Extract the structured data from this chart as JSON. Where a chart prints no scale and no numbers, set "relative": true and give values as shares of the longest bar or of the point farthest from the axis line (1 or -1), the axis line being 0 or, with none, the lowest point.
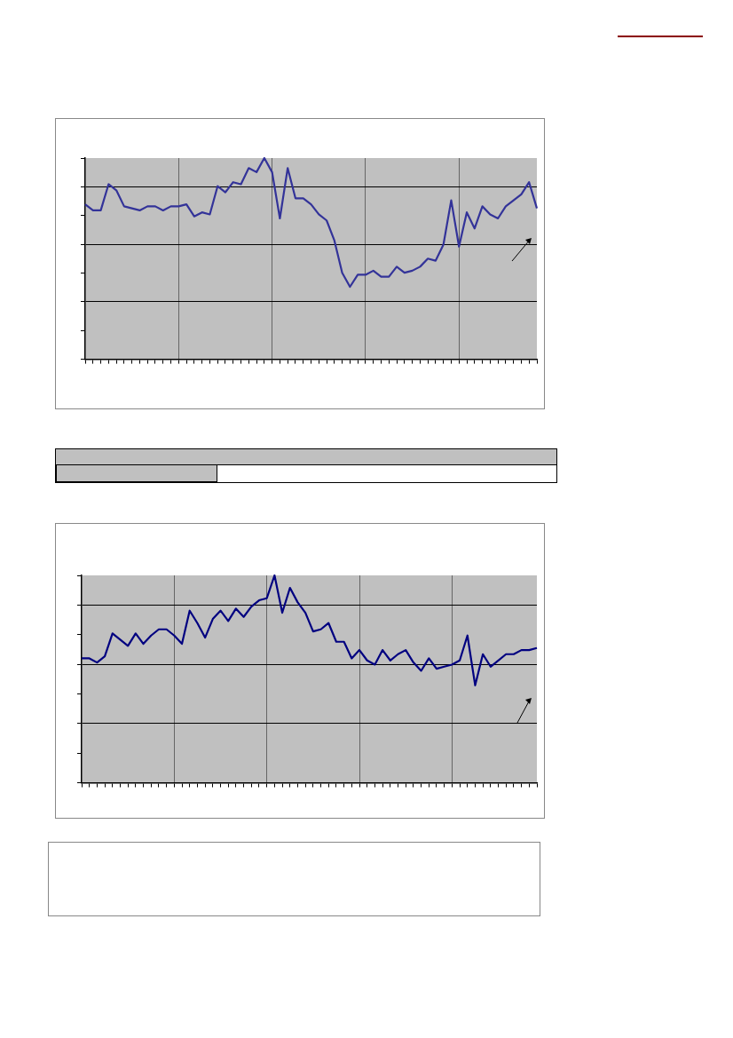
{
  "chart_data": [
    {
      "type": "line",
      "relative": true,
      "grid": true,
      "legend": false,
      "marker": "none",
      "line_style": "solid",
      "categories": [
        null,
        null,
        null,
        null,
        null,
        null,
        null,
        null,
        null,
        null,
        null,
        null,
        null,
        null,
        null,
        null,
        null,
        null,
        null,
        null,
        null,
        null,
        null,
        null,
        null,
        null,
        null,
        null,
        null,
        null,
        null,
        null,
        null,
        null,
        null,
        null,
        null,
        null,
        null,
        null,
        null,
        null,
        null,
        null,
        null,
        null,
        null,
        null,
        null,
        null,
        null,
        null,
        null,
        null,
        null,
        null,
        null,
        null,
        null
      ],
      "series": [
        {
          "color": "#333399",
          "values": [
            0.77,
            0.74,
            0.74,
            0.87,
            0.84,
            0.76,
            0.75,
            0.74,
            0.76,
            0.76,
            0.74,
            0.76,
            0.76,
            0.77,
            0.71,
            0.73,
            0.72,
            0.86,
            0.83,
            0.88,
            0.87,
            0.95,
            0.93,
            1,
            0.93,
            0.7,
            0.95,
            0.8,
            0.8,
            0.77,
            0.72,
            0.69,
            0.59,
            0.43,
            0.36,
            0.42,
            0.42,
            0.44,
            0.41,
            0.41,
            0.46,
            0.43,
            0.44,
            0.46,
            0.5,
            0.49,
            0.57,
            0.79,
            0.56,
            0.73,
            0.65,
            0.76,
            0.72,
            0.7,
            0.76,
            0.79,
            0.82,
            0.88,
            0.75
          ]
        }
      ]
    },
    {
      "type": "line",
      "relative": true,
      "grid": true,
      "legend": false,
      "marker": "none",
      "line_style": "solid",
      "categories": [
        null,
        null,
        null,
        null,
        null,
        null,
        null,
        null,
        null,
        null,
        null,
        null,
        null,
        null,
        null,
        null,
        null,
        null,
        null,
        null,
        null,
        null,
        null,
        null,
        null,
        null,
        null,
        null,
        null,
        null,
        null,
        null,
        null,
        null,
        null,
        null,
        null,
        null,
        null,
        null,
        null,
        null,
        null,
        null,
        null,
        null,
        null,
        null,
        null,
        null,
        null,
        null,
        null,
        null,
        null,
        null,
        null,
        null,
        null,
        null
      ],
      "series": [
        {
          "color": "#000080",
          "values": [
            0.6,
            0.6,
            0.58,
            0.61,
            0.72,
            0.69,
            0.66,
            0.72,
            0.67,
            0.71,
            0.74,
            0.74,
            0.71,
            0.67,
            0.83,
            0.77,
            0.7,
            0.79,
            0.83,
            0.78,
            0.84,
            0.8,
            0.85,
            0.88,
            0.89,
            1,
            0.82,
            0.94,
            0.87,
            0.82,
            0.73,
            0.74,
            0.77,
            0.68,
            0.68,
            0.6,
            0.64,
            0.59,
            0.57,
            0.64,
            0.59,
            0.62,
            0.64,
            0.58,
            0.54,
            0.6,
            0.55,
            0.56,
            0.57,
            0.59,
            0.71,
            0.47,
            0.62,
            0.56,
            0.59,
            0.62,
            0.62,
            0.64,
            0.64,
            0.65
          ]
        }
      ]
    }
  ]
}
